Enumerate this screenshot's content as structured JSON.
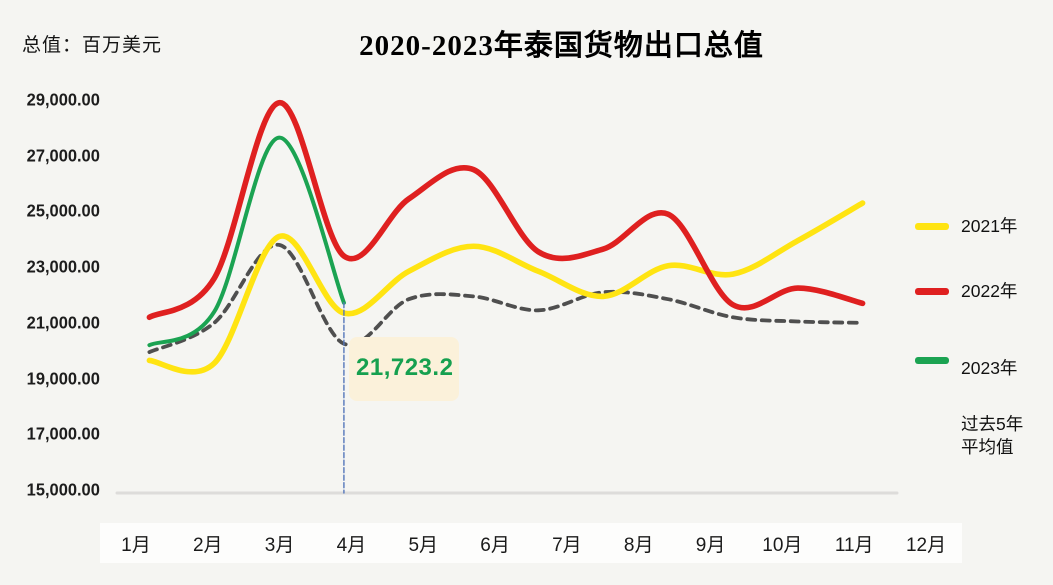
{
  "header": {
    "unit_label": "总值：百万美元",
    "title": "2020-2023年泰国货物出口总值"
  },
  "chart_data": {
    "type": "line",
    "title": "2020-2023年泰国货物出口总值",
    "ylabel": "总值：百万美元",
    "categories": [
      "1月",
      "2月",
      "3月",
      "4月",
      "5月",
      "6月",
      "7月",
      "8月",
      "9月",
      "10月",
      "11月",
      "12月"
    ],
    "y_tick_labels": [
      "29,000.00",
      "27,000.00",
      "25,000.00",
      "23,000.00",
      "21,000.00",
      "19,000.00",
      "17,000.00",
      "15,000.00"
    ],
    "ylim": [
      15000,
      29000
    ],
    "y_step": 2000,
    "grid": "off",
    "legend_position": "right",
    "series": [
      {
        "name": "2021年",
        "color": "#ffe412",
        "style": "solid",
        "values": [
          19650,
          19550,
          24100,
          21350,
          22850,
          23750,
          22850,
          21950,
          23050,
          22750,
          23950,
          25300
        ]
      },
      {
        "name": "2022年",
        "color": "#df2020",
        "style": "solid",
        "values": [
          21200,
          22600,
          28900,
          23400,
          25450,
          26500,
          23550,
          23650,
          24900,
          21650,
          22250,
          21700
        ]
      },
      {
        "name": "2023年",
        "color": "#1ba352",
        "style": "solid",
        "values": [
          20200,
          21400,
          27650,
          21723.2
        ]
      },
      {
        "name": "过去5年平均值",
        "color": "#4f4f4f",
        "style": "dashed",
        "values": [
          19950,
          21000,
          23800,
          20250,
          21850,
          21950,
          21450,
          22100,
          21850,
          21200,
          21050,
          21000
        ]
      }
    ],
    "annotation": {
      "label": "21,723.2",
      "value": 21723.2,
      "series": "2023年",
      "month": "4月",
      "month_index": 3,
      "marker_line_color": "#5577bb",
      "box_color": "#fbf1da",
      "text_color": "#16a04f"
    }
  },
  "legend": {
    "items": [
      {
        "label": "2021年",
        "label2": "",
        "color": "#ffe412",
        "dashed": false
      },
      {
        "label": "2022年",
        "label2": "",
        "color": "#df2020",
        "dashed": false
      },
      {
        "label": "2023年",
        "label2": "",
        "color": "#1ba352",
        "dashed": false
      },
      {
        "label": "过去5年",
        "label2": "平均值",
        "color": "#8f8f8f",
        "dashed": true
      }
    ]
  }
}
